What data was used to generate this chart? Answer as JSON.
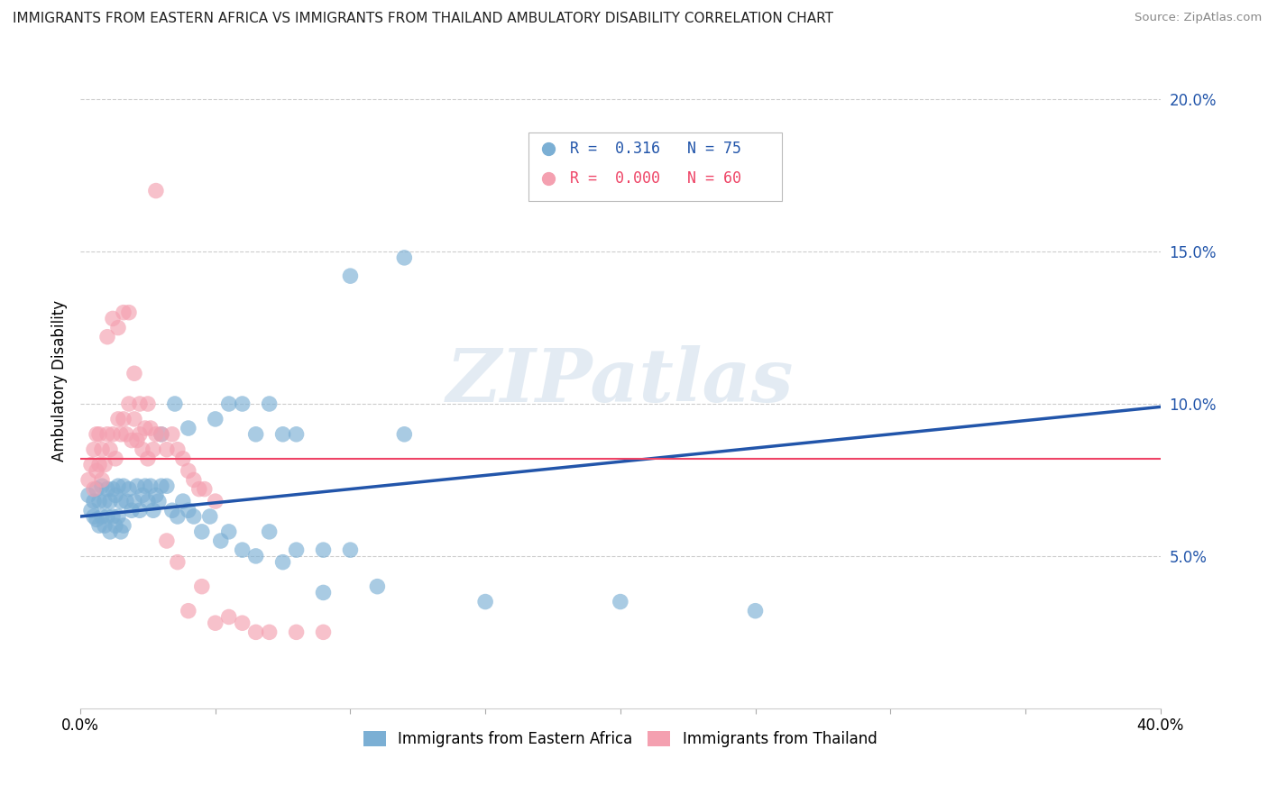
{
  "title": "IMMIGRANTS FROM EASTERN AFRICA VS IMMIGRANTS FROM THAILAND AMBULATORY DISABILITY CORRELATION CHART",
  "source": "Source: ZipAtlas.com",
  "ylabel": "Ambulatory Disability",
  "xlim": [
    0.0,
    0.4
  ],
  "ylim": [
    0.0,
    0.215
  ],
  "yticks": [
    0.05,
    0.1,
    0.15,
    0.2
  ],
  "ytick_labels": [
    "5.0%",
    "10.0%",
    "15.0%",
    "20.0%"
  ],
  "xticks": [
    0.0,
    0.05,
    0.1,
    0.15,
    0.2,
    0.25,
    0.3,
    0.35,
    0.4
  ],
  "xtick_labels": [
    "0.0%",
    "",
    "",
    "",
    "",
    "",
    "",
    "",
    "40.0%"
  ],
  "legend_label1": "Immigrants from Eastern Africa",
  "legend_label2": "Immigrants from Thailand",
  "R1": "0.316",
  "N1": "75",
  "R2": "0.000",
  "N2": "60",
  "color_blue": "#7BAFD4",
  "color_pink": "#F4A0B0",
  "color_blue_line": "#2255AA",
  "color_pink_line": "#EE4466",
  "watermark": "ZIPatlas",
  "background_color": "#FFFFFF",
  "grid_color": "#CCCCCC",
  "blue_scatter_x": [
    0.003,
    0.004,
    0.005,
    0.005,
    0.006,
    0.006,
    0.007,
    0.007,
    0.008,
    0.008,
    0.009,
    0.009,
    0.01,
    0.01,
    0.011,
    0.011,
    0.012,
    0.012,
    0.013,
    0.013,
    0.014,
    0.014,
    0.015,
    0.015,
    0.016,
    0.016,
    0.017,
    0.018,
    0.019,
    0.02,
    0.021,
    0.022,
    0.023,
    0.024,
    0.025,
    0.026,
    0.027,
    0.028,
    0.029,
    0.03,
    0.032,
    0.034,
    0.036,
    0.038,
    0.04,
    0.042,
    0.045,
    0.048,
    0.052,
    0.055,
    0.06,
    0.065,
    0.07,
    0.075,
    0.08,
    0.09,
    0.1,
    0.11,
    0.12,
    0.15,
    0.2,
    0.25,
    0.03,
    0.035,
    0.04,
    0.05,
    0.055,
    0.06,
    0.065,
    0.07,
    0.075,
    0.08,
    0.09,
    0.1,
    0.12
  ],
  "blue_scatter_y": [
    0.07,
    0.065,
    0.068,
    0.063,
    0.072,
    0.062,
    0.068,
    0.06,
    0.073,
    0.063,
    0.068,
    0.06,
    0.072,
    0.063,
    0.068,
    0.058,
    0.072,
    0.063,
    0.07,
    0.06,
    0.073,
    0.063,
    0.068,
    0.058,
    0.073,
    0.06,
    0.068,
    0.072,
    0.065,
    0.068,
    0.073,
    0.065,
    0.07,
    0.073,
    0.068,
    0.073,
    0.065,
    0.07,
    0.068,
    0.073,
    0.073,
    0.065,
    0.063,
    0.068,
    0.065,
    0.063,
    0.058,
    0.063,
    0.055,
    0.058,
    0.052,
    0.05,
    0.058,
    0.048,
    0.052,
    0.038,
    0.142,
    0.04,
    0.09,
    0.035,
    0.035,
    0.032,
    0.09,
    0.1,
    0.092,
    0.095,
    0.1,
    0.1,
    0.09,
    0.1,
    0.09,
    0.09,
    0.052,
    0.052,
    0.148
  ],
  "pink_scatter_x": [
    0.003,
    0.004,
    0.005,
    0.005,
    0.006,
    0.006,
    0.007,
    0.007,
    0.008,
    0.008,
    0.009,
    0.01,
    0.011,
    0.012,
    0.013,
    0.014,
    0.015,
    0.016,
    0.017,
    0.018,
    0.019,
    0.02,
    0.021,
    0.022,
    0.023,
    0.024,
    0.025,
    0.026,
    0.027,
    0.028,
    0.03,
    0.032,
    0.034,
    0.036,
    0.038,
    0.04,
    0.042,
    0.044,
    0.046,
    0.05,
    0.01,
    0.012,
    0.014,
    0.016,
    0.018,
    0.02,
    0.022,
    0.025,
    0.028,
    0.032,
    0.036,
    0.04,
    0.045,
    0.05,
    0.055,
    0.06,
    0.065,
    0.07,
    0.08,
    0.09
  ],
  "pink_scatter_y": [
    0.075,
    0.08,
    0.072,
    0.085,
    0.078,
    0.09,
    0.08,
    0.09,
    0.075,
    0.085,
    0.08,
    0.09,
    0.085,
    0.09,
    0.082,
    0.095,
    0.09,
    0.095,
    0.09,
    0.1,
    0.088,
    0.095,
    0.088,
    0.09,
    0.085,
    0.092,
    0.082,
    0.092,
    0.085,
    0.09,
    0.09,
    0.085,
    0.09,
    0.085,
    0.082,
    0.078,
    0.075,
    0.072,
    0.072,
    0.068,
    0.122,
    0.128,
    0.125,
    0.13,
    0.13,
    0.11,
    0.1,
    0.1,
    0.17,
    0.055,
    0.048,
    0.032,
    0.04,
    0.028,
    0.03,
    0.028,
    0.025,
    0.025,
    0.025,
    0.025
  ],
  "blue_line_x": [
    0.0,
    0.4
  ],
  "blue_line_y": [
    0.063,
    0.099
  ],
  "pink_line_x": [
    0.0,
    0.4
  ],
  "pink_line_y": [
    0.082,
    0.082
  ]
}
